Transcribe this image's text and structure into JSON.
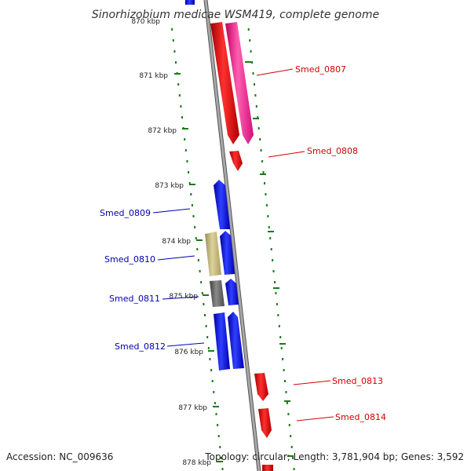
{
  "title": "Sinorhizobium medicae WSM419, complete genome",
  "accession_label": "Accession: NC_009636",
  "topology_label": "Topology: circular; Length: 3,781,904 bp; Genes: 3,592",
  "ticks": [
    "870 kbp",
    "871 kbp",
    "872 kbp",
    "873 kbp",
    "874 kbp",
    "875 kbp",
    "876 kbp",
    "877 kbp",
    "878 kbp"
  ],
  "genes": [
    {
      "id": "Smed_0807",
      "label": "Smed_0807",
      "color": "#d40000"
    },
    {
      "id": "Smed_0808",
      "label": "Smed_0808",
      "color": "#d40000"
    },
    {
      "id": "Smed_0809",
      "label": "Smed_0809",
      "color": "#0000b4"
    },
    {
      "id": "Smed_0810",
      "label": "Smed_0810",
      "color": "#0000b4"
    },
    {
      "id": "Smed_0811",
      "label": "Smed_0811",
      "color": "#0000b4"
    },
    {
      "id": "Smed_0812",
      "label": "Smed_0812",
      "color": "#0000b4"
    },
    {
      "id": "Smed_0813",
      "label": "Smed_0813",
      "color": "#d40000"
    },
    {
      "id": "Smed_0814",
      "label": "Smed_0814",
      "color": "#d40000"
    }
  ],
  "colors": {
    "forward_cds": "#ff0000",
    "forward_gene": "#ff1493",
    "reverse_cds": "#0000ff",
    "reverse_misc_yellow": "#c8bc78",
    "reverse_misc_gray": "#606060",
    "backbone": "#909090",
    "tick_marks": "#1a7a1a"
  }
}
